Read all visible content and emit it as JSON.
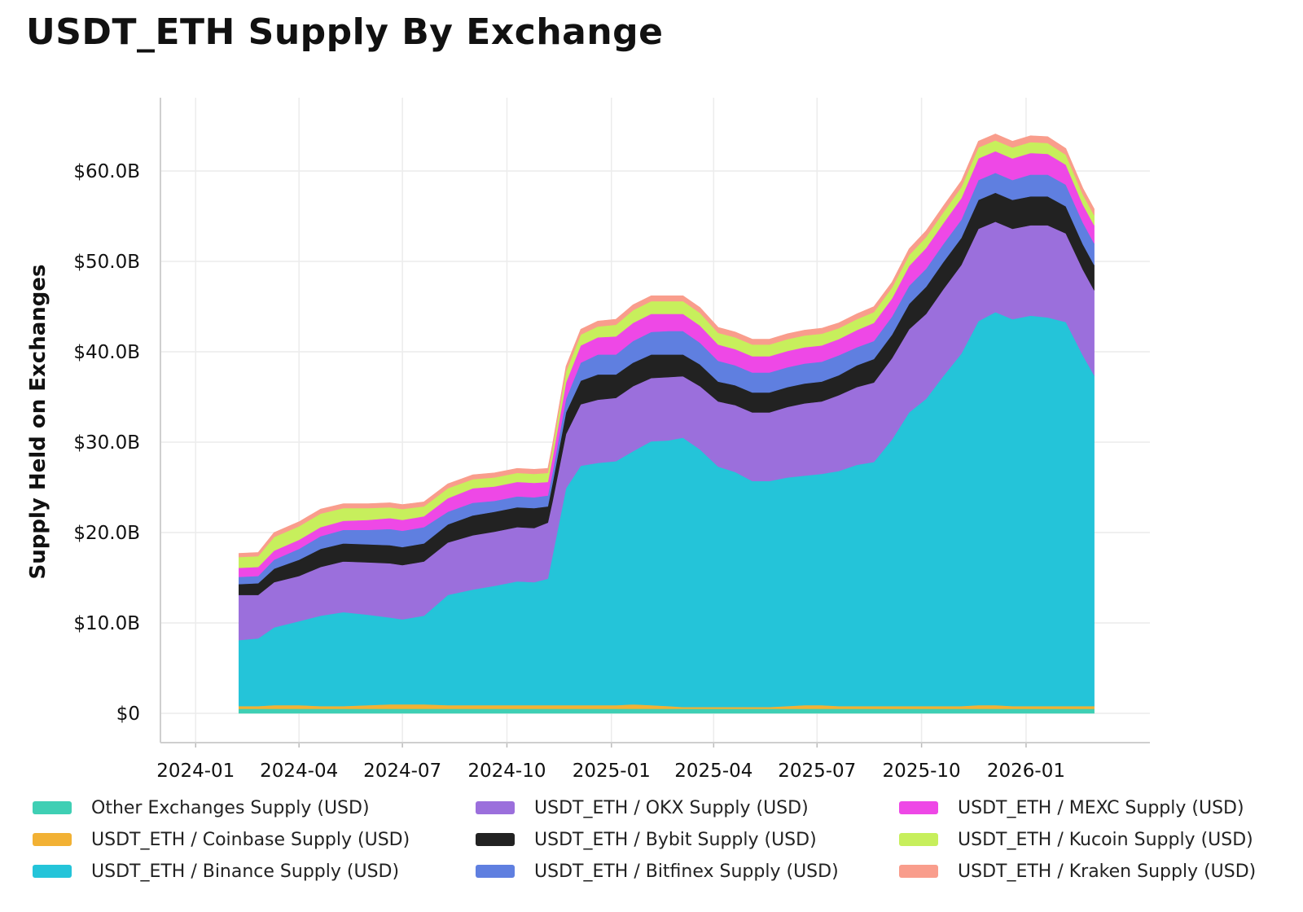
{
  "chart_data": {
    "type": "area",
    "title": "USDT_ETH Supply By Exchange",
    "ylabel": "Supply Held on Exchanges",
    "xlabel": "",
    "stacked": true,
    "grid": true,
    "legend_position": "bottom",
    "ylim": [
      0,
      70
    ],
    "yticks": [
      0,
      10,
      20,
      30,
      40,
      50,
      60
    ],
    "ytick_labels": [
      "$0",
      "$10.0B",
      "$20.0B",
      "$30.0B",
      "$40.0B",
      "$50.0B",
      "$60.0B"
    ],
    "xlim": [
      "2023-12-01",
      "2026-04-20"
    ],
    "xtick_labels": [
      "2024-01",
      "2024-04",
      "2024-07",
      "2024-10",
      "2025-01",
      "2025-04",
      "2025-07",
      "2025-10",
      "2026-01"
    ],
    "x": [
      "2024-02-08",
      "2024-02-25",
      "2024-03-10",
      "2024-04-01",
      "2024-04-20",
      "2024-05-10",
      "2024-06-01",
      "2024-06-20",
      "2024-07-01",
      "2024-07-20",
      "2024-08-10",
      "2024-09-01",
      "2024-09-20",
      "2024-10-10",
      "2024-10-25",
      "2024-11-06",
      "2024-11-10",
      "2024-11-22",
      "2024-12-05",
      "2024-12-20",
      "2025-01-05",
      "2025-01-20",
      "2025-02-05",
      "2025-02-20",
      "2025-03-05",
      "2025-03-20",
      "2025-04-05",
      "2025-04-20",
      "2025-05-05",
      "2025-05-20",
      "2025-06-05",
      "2025-06-20",
      "2025-07-05",
      "2025-07-20",
      "2025-08-05",
      "2025-08-20",
      "2025-09-05",
      "2025-09-20",
      "2025-10-05",
      "2025-10-20",
      "2025-11-05",
      "2025-11-20",
      "2025-12-05",
      "2025-12-20",
      "2026-01-05",
      "2026-01-20",
      "2026-02-05",
      "2026-02-20",
      "2026-03-02"
    ],
    "series": [
      {
        "name": "Other Exchanges Supply (USD)",
        "color": "#3fcfb4",
        "values": [
          0.5,
          0.5,
          0.5,
          0.5,
          0.5,
          0.5,
          0.5,
          0.5,
          0.5,
          0.5,
          0.5,
          0.5,
          0.5,
          0.5,
          0.5,
          0.5,
          0.5,
          0.5,
          0.5,
          0.5,
          0.5,
          0.5,
          0.5,
          0.5,
          0.5,
          0.5,
          0.5,
          0.5,
          0.5,
          0.5,
          0.5,
          0.5,
          0.5,
          0.5,
          0.5,
          0.5,
          0.5,
          0.5,
          0.5,
          0.5,
          0.5,
          0.5,
          0.5,
          0.5,
          0.5,
          0.5,
          0.5,
          0.5,
          0.5
        ]
      },
      {
        "name": "USDT_ETH / Coinbase Supply (USD)",
        "color": "#f2b134",
        "values": [
          0.3,
          0.3,
          0.4,
          0.4,
          0.3,
          0.3,
          0.4,
          0.5,
          0.5,
          0.5,
          0.4,
          0.4,
          0.4,
          0.4,
          0.4,
          0.4,
          0.4,
          0.4,
          0.4,
          0.4,
          0.4,
          0.5,
          0.4,
          0.3,
          0.2,
          0.2,
          0.2,
          0.2,
          0.2,
          0.2,
          0.3,
          0.4,
          0.4,
          0.3,
          0.3,
          0.3,
          0.3,
          0.3,
          0.3,
          0.3,
          0.3,
          0.4,
          0.4,
          0.3,
          0.3,
          0.3,
          0.3,
          0.3,
          0.3
        ]
      },
      {
        "name": "USDT_ETH / Binance Supply (USD)",
        "color": "#24c4d9",
        "values": [
          7.3,
          7.5,
          8.6,
          9.3,
          10.0,
          10.4,
          10.0,
          9.6,
          9.4,
          9.8,
          12.2,
          12.8,
          13.2,
          13.7,
          13.6,
          14.0,
          16.5,
          24.0,
          26.5,
          26.8,
          27.0,
          28.0,
          29.2,
          29.4,
          29.8,
          28.5,
          26.6,
          26.0,
          25.0,
          25.0,
          25.3,
          25.4,
          25.6,
          26.0,
          26.7,
          27.0,
          29.5,
          32.5,
          34.0,
          36.5,
          39.0,
          42.5,
          43.5,
          42.8,
          43.2,
          43.0,
          42.5,
          38.8,
          36.6
        ]
      },
      {
        "name": "USDT_ETH / OKX Supply (USD)",
        "color": "#9b6fdc",
        "values": [
          5.0,
          4.8,
          5.0,
          5.0,
          5.4,
          5.6,
          5.8,
          6.0,
          6.0,
          6.0,
          5.8,
          6.0,
          6.0,
          6.0,
          6.0,
          6.2,
          6.0,
          6.0,
          6.8,
          7.0,
          7.0,
          7.2,
          7.0,
          7.0,
          6.8,
          7.0,
          7.2,
          7.4,
          7.6,
          7.6,
          7.8,
          8.0,
          8.0,
          8.4,
          8.6,
          8.8,
          9.0,
          9.2,
          9.4,
          9.6,
          9.8,
          10.2,
          10.0,
          10.0,
          10.0,
          10.2,
          9.8,
          9.5,
          9.4
        ]
      },
      {
        "name": "USDT_ETH / Bybit Supply (USD)",
        "color": "#222222",
        "values": [
          1.2,
          1.3,
          1.5,
          1.8,
          2.0,
          2.0,
          2.0,
          2.0,
          2.0,
          2.0,
          2.0,
          2.2,
          2.2,
          2.2,
          2.2,
          1.8,
          2.0,
          2.4,
          2.6,
          2.8,
          2.6,
          2.6,
          2.6,
          2.5,
          2.4,
          2.4,
          2.2,
          2.2,
          2.2,
          2.2,
          2.2,
          2.2,
          2.2,
          2.2,
          2.4,
          2.6,
          2.6,
          2.8,
          3.0,
          3.0,
          3.0,
          3.2,
          3.2,
          3.2,
          3.2,
          3.2,
          3.0,
          2.8,
          2.8
        ]
      },
      {
        "name": "USDT_ETH / Bitfinex Supply (USD)",
        "color": "#5f7fe0",
        "values": [
          0.8,
          0.8,
          1.0,
          1.2,
          1.4,
          1.5,
          1.6,
          1.8,
          1.8,
          1.8,
          1.4,
          1.4,
          1.2,
          1.2,
          1.2,
          1.2,
          1.2,
          1.5,
          2.0,
          2.2,
          2.2,
          2.4,
          2.5,
          2.6,
          2.6,
          2.4,
          2.3,
          2.2,
          2.2,
          2.2,
          2.2,
          2.2,
          2.2,
          2.2,
          2.0,
          2.0,
          2.0,
          2.0,
          2.0,
          2.0,
          2.0,
          2.2,
          2.2,
          2.2,
          2.4,
          2.4,
          2.4,
          2.4,
          2.4
        ]
      },
      {
        "name": "USDT_ETH / MEXC Supply (USD)",
        "color": "#ee48e6",
        "values": [
          1.0,
          1.0,
          1.0,
          1.0,
          1.0,
          1.0,
          1.1,
          1.2,
          1.2,
          1.2,
          1.5,
          1.6,
          1.6,
          1.6,
          1.6,
          1.5,
          1.6,
          1.8,
          1.9,
          1.9,
          2.0,
          2.0,
          2.0,
          1.9,
          1.9,
          1.9,
          1.8,
          1.8,
          1.8,
          1.8,
          1.8,
          1.8,
          1.8,
          1.8,
          1.9,
          2.0,
          2.0,
          2.2,
          2.3,
          2.3,
          2.4,
          2.4,
          2.4,
          2.4,
          2.4,
          2.3,
          2.2,
          2.0,
          2.0
        ]
      },
      {
        "name": "USDT_ETH / Kucoin Supply (USD)",
        "color": "#c7ef5c",
        "values": [
          1.2,
          1.2,
          1.5,
          1.5,
          1.5,
          1.4,
          1.3,
          1.2,
          1.2,
          1.1,
          1.1,
          1.0,
          1.0,
          1.0,
          1.0,
          1.0,
          1.0,
          1.2,
          1.2,
          1.2,
          1.3,
          1.4,
          1.4,
          1.4,
          1.4,
          1.4,
          1.3,
          1.3,
          1.3,
          1.3,
          1.3,
          1.3,
          1.3,
          1.2,
          1.2,
          1.2,
          1.2,
          1.2,
          1.2,
          1.2,
          1.2,
          1.2,
          1.2,
          1.2,
          1.2,
          1.2,
          1.1,
          1.1,
          1.1
        ]
      },
      {
        "name": "USDT_ETH / Kraken Supply (USD)",
        "color": "#f99d8c",
        "values": [
          0.4,
          0.4,
          0.5,
          0.5,
          0.5,
          0.5,
          0.5,
          0.5,
          0.5,
          0.5,
          0.5,
          0.5,
          0.5,
          0.5,
          0.5,
          0.5,
          0.5,
          0.6,
          0.6,
          0.6,
          0.6,
          0.6,
          0.6,
          0.6,
          0.6,
          0.6,
          0.6,
          0.6,
          0.6,
          0.6,
          0.6,
          0.6,
          0.6,
          0.6,
          0.6,
          0.6,
          0.6,
          0.7,
          0.7,
          0.7,
          0.7,
          0.7,
          0.7,
          0.7,
          0.7,
          0.7,
          0.7,
          0.7,
          0.7
        ]
      }
    ]
  }
}
